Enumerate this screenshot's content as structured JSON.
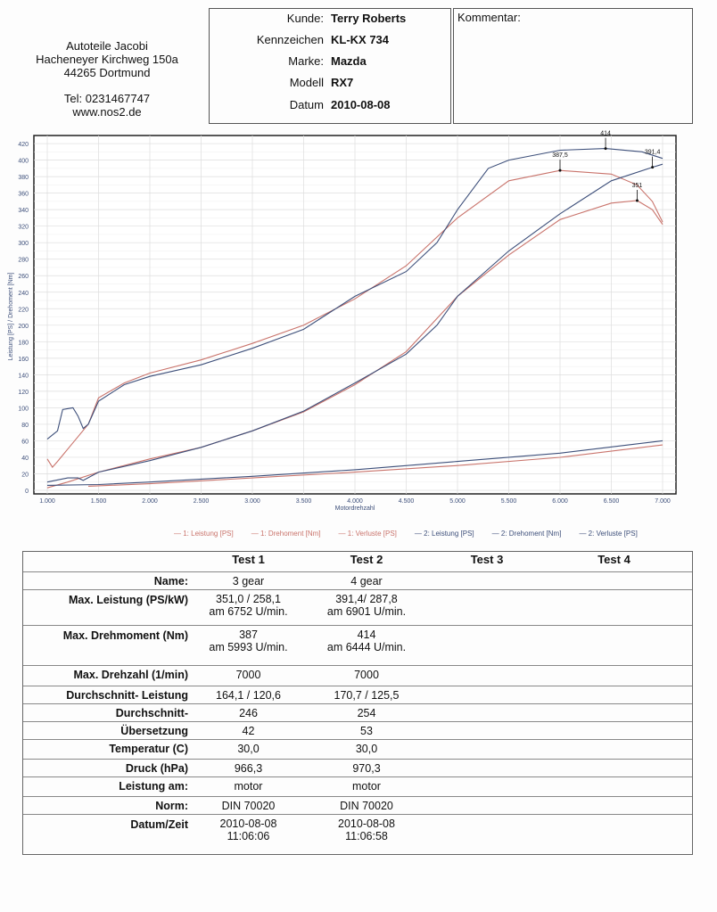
{
  "company": {
    "name": "Autoteile Jacobi",
    "street": "Hacheneyer Kirchweg 150a",
    "city": "44265 Dortmund",
    "tel": "Tel: 0231467747",
    "web": "www.nos2.de"
  },
  "customer": {
    "rows": [
      {
        "label": "Kunde:",
        "value": "Terry Roberts"
      },
      {
        "label": "Kennzeichen",
        "value": "KL-KX 734"
      },
      {
        "label": "Marke:",
        "value": "Mazda"
      },
      {
        "label": "Modell",
        "value": "RX7"
      },
      {
        "label": "Datum",
        "value": "2010-08-08"
      }
    ]
  },
  "comment": {
    "label": "Kommentar:"
  },
  "chart_data": {
    "type": "line",
    "xlabel": "Motordrehzahl",
    "ylabel": "Leistung [PS] / Drehoment [Nm]",
    "xlim": [
      1000,
      7000
    ],
    "ylim": [
      0,
      430
    ],
    "xticks": [
      "1.000",
      "1.500",
      "2.000",
      "2.500",
      "3.000",
      "3.500",
      "4.000",
      "4.500",
      "5.000",
      "5.500",
      "6.000",
      "6.500",
      "7.000"
    ],
    "yticks": [
      "0",
      "20",
      "40",
      "60",
      "80",
      "100",
      "120",
      "140",
      "160",
      "180",
      "200",
      "220",
      "240",
      "260",
      "280",
      "300",
      "320",
      "340",
      "360",
      "380",
      "400",
      "420"
    ],
    "grid": true,
    "series": [
      {
        "name": "1: Leistung [PS]",
        "color": "#c9736b",
        "x": [
          1000,
          1200,
          1500,
          2000,
          2500,
          3000,
          3500,
          4000,
          4500,
          5000,
          5500,
          6000,
          6500,
          6752,
          6900,
          7000
        ],
        "y": [
          3,
          10,
          22,
          38,
          52,
          72,
          95,
          128,
          168,
          235,
          285,
          328,
          348,
          351,
          340,
          322
        ]
      },
      {
        "name": "1: Drehoment [Nm]",
        "color": "#c9736b",
        "x": [
          1000,
          1050,
          1100,
          1200,
          1300,
          1400,
          1500,
          1750,
          2000,
          2500,
          3000,
          3500,
          4000,
          4500,
          5000,
          5500,
          6000,
          6500,
          6750,
          6900,
          7000
        ],
        "y": [
          38,
          28,
          35,
          50,
          65,
          80,
          112,
          130,
          142,
          158,
          178,
          200,
          232,
          272,
          330,
          375,
          387.5,
          383,
          370,
          350,
          325
        ]
      },
      {
        "name": "1: Verluste [PS]",
        "color": "#c9736b",
        "x": [
          1400,
          2000,
          3000,
          4000,
          5000,
          6000,
          7000
        ],
        "y": [
          5,
          8,
          15,
          22,
          30,
          40,
          55
        ]
      },
      {
        "name": "2: Leistung [PS]",
        "color": "#3d4f7a",
        "x": [
          1000,
          1200,
          1300,
          1350,
          1500,
          2000,
          2500,
          3000,
          3500,
          4000,
          4500,
          4800,
          5000,
          5500,
          6000,
          6500,
          6901,
          7000
        ],
        "y": [
          10,
          15,
          15,
          12,
          22,
          36,
          52,
          72,
          96,
          130,
          165,
          200,
          235,
          290,
          335,
          375,
          391.4,
          395
        ]
      },
      {
        "name": "2: Drehoment [Nm]",
        "color": "#3d4f7a",
        "x": [
          1000,
          1100,
          1150,
          1250,
          1300,
          1350,
          1400,
          1500,
          1750,
          2000,
          2500,
          3000,
          3500,
          4000,
          4500,
          4800,
          5000,
          5300,
          5500,
          6000,
          6444,
          6800,
          7000
        ],
        "y": [
          62,
          72,
          98,
          100,
          90,
          75,
          80,
          108,
          128,
          138,
          152,
          172,
          195,
          235,
          265,
          300,
          340,
          390,
          400,
          412,
          414,
          410,
          402
        ]
      },
      {
        "name": "2: Verluste [PS]",
        "color": "#3d4f7a",
        "x": [
          1000,
          1500,
          2000,
          3000,
          4000,
          5000,
          6000,
          7000
        ],
        "y": [
          6,
          7,
          10,
          17,
          25,
          35,
          45,
          60
        ]
      }
    ],
    "annotations": [
      {
        "text": "387,5",
        "x": 6000,
        "y": 387.5
      },
      {
        "text": "414",
        "x": 6444,
        "y": 414
      },
      {
        "text": "351",
        "x": 6752,
        "y": 351
      },
      {
        "text": "391,4",
        "x": 6901,
        "y": 391.4
      }
    ],
    "legend_position": "bottom"
  },
  "table": {
    "headers": [
      "Test 1",
      "Test 2",
      "Test 3",
      "Test 4"
    ],
    "rows": [
      {
        "label": "Name:",
        "t1": [
          "3 gear"
        ],
        "t2": [
          "4 gear"
        ]
      },
      {
        "label": "Max. Leistung (PS/kW)",
        "t1": [
          "351,0 / 258,1",
          "am 6752   U/min."
        ],
        "t2": [
          "391,4/ 287,8",
          "am 6901   U/min."
        ]
      },
      {
        "label": "Max. Drehmoment (Nm)",
        "t1": [
          "387",
          "am 5993   U/min."
        ],
        "t2": [
          "414",
          "am 6444   U/min."
        ]
      },
      {
        "label": "Max. Drehzahl (1/min)",
        "t1": [
          "7000"
        ],
        "t2": [
          "7000"
        ]
      },
      {
        "label": "Durchschnitt- Leistung",
        "t1": [
          "164,1 / 120,6"
        ],
        "t2": [
          "170,7 / 125,5"
        ]
      },
      {
        "label": "Durchschnitt-",
        "t1": [
          "246"
        ],
        "t2": [
          "254"
        ]
      },
      {
        "label": "Übersetzung",
        "t1": [
          "42"
        ],
        "t2": [
          "53"
        ]
      },
      {
        "label": "Temperatur (C)",
        "t1": [
          "30,0"
        ],
        "t2": [
          "30,0"
        ]
      },
      {
        "label": "Druck (hPa)",
        "t1": [
          "966,3"
        ],
        "t2": [
          "970,3"
        ]
      },
      {
        "label": "Leistung am:",
        "t1": [
          "motor"
        ],
        "t2": [
          "motor"
        ]
      },
      {
        "label": "Norm:",
        "t1": [
          "DIN 70020"
        ],
        "t2": [
          "DIN 70020"
        ]
      },
      {
        "label": "Datum/Zeit",
        "t1": [
          "2010-08-08",
          "11:06:06"
        ],
        "t2": [
          "2010-08-08",
          "11:06:58"
        ]
      }
    ]
  }
}
